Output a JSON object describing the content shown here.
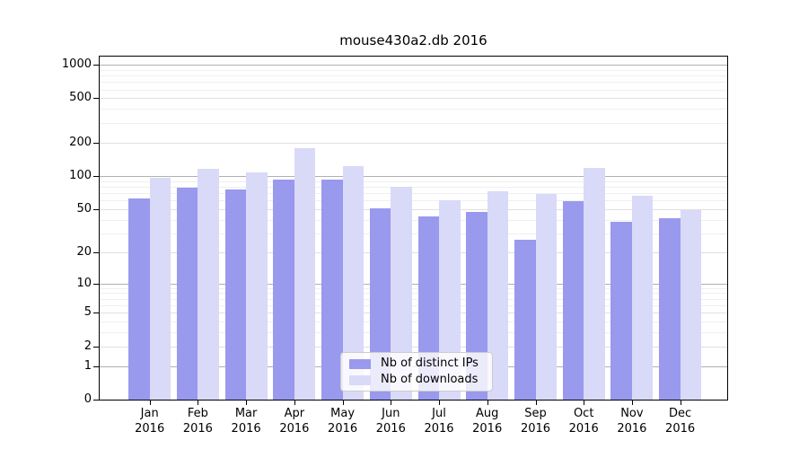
{
  "title": "mouse430a2.db 2016",
  "chart_data": {
    "type": "bar",
    "title": "mouse430a2.db 2016",
    "categories": [
      "Jan",
      "Feb",
      "Mar",
      "Apr",
      "May",
      "Jun",
      "Jul",
      "Aug",
      "Sep",
      "Oct",
      "Nov",
      "Dec"
    ],
    "year": "2016",
    "series": [
      {
        "name": "Nb of distinct IPs",
        "color": "#9999ee",
        "values": [
          63,
          78,
          75,
          93,
          92,
          51,
          43,
          47,
          26,
          59,
          38,
          41
        ]
      },
      {
        "name": "Nb of downloads",
        "color": "#d9d9f8",
        "values": [
          97,
          116,
          107,
          178,
          122,
          79,
          60,
          72,
          69,
          119,
          66,
          49
        ]
      }
    ],
    "y_scale": "log(value+1)",
    "y_ticks": [
      0,
      1,
      2,
      5,
      10,
      20,
      50,
      100,
      200,
      500,
      1000
    ],
    "y_decade_ticks": [
      1,
      10,
      100,
      1000
    ],
    "y_minor_gridlines": [
      3,
      4,
      6,
      7,
      8,
      9,
      30,
      40,
      60,
      70,
      80,
      90,
      300,
      400,
      600,
      700,
      800,
      900
    ],
    "ylim": [
      0,
      1240
    ],
    "grid": true,
    "legend_position": "lower center",
    "colors": {
      "grid_minor": "#efefef",
      "grid_major": "#e0e0e0",
      "grid_decade": "#b0b0b0",
      "axis": "#000000"
    }
  }
}
